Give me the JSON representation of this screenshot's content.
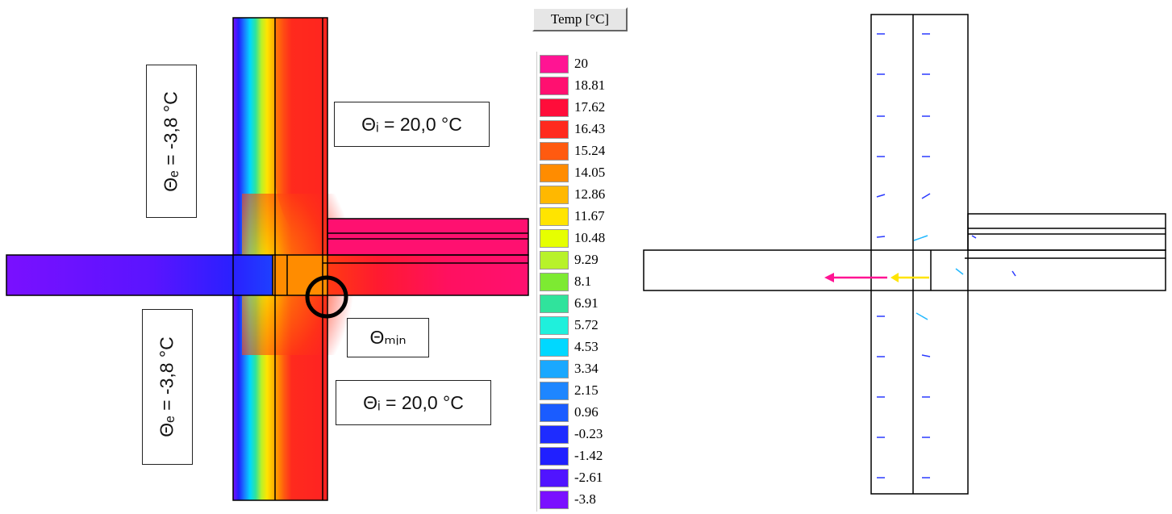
{
  "labels": {
    "theta_e_top": "Θₑ = -3,8 °C",
    "theta_e_bottom": "Θₑ = -3,8 °C",
    "theta_i_top": "Θᵢ = 20,0 °C",
    "theta_i_bottom": "Θᵢ = 20,0 °C",
    "theta_min": "Θₘᵢₙ"
  },
  "legend": {
    "title": "Temp [°C]",
    "entries": [
      {
        "value": "20",
        "color": "#ff1493"
      },
      {
        "value": "18.81",
        "color": "#ff1070"
      },
      {
        "value": "17.62",
        "color": "#ff0d3a"
      },
      {
        "value": "16.43",
        "color": "#ff2a1e"
      },
      {
        "value": "15.24",
        "color": "#ff5a10"
      },
      {
        "value": "14.05",
        "color": "#ff8c00"
      },
      {
        "value": "12.86",
        "color": "#ffb800"
      },
      {
        "value": "11.67",
        "color": "#ffe400"
      },
      {
        "value": "10.48",
        "color": "#e6ff00"
      },
      {
        "value": "9.29",
        "color": "#b8f22a"
      },
      {
        "value": "8.1",
        "color": "#7dea32"
      },
      {
        "value": "6.91",
        "color": "#30e39c"
      },
      {
        "value": "5.72",
        "color": "#1ff0dc"
      },
      {
        "value": "4.53",
        "color": "#00d8ff"
      },
      {
        "value": "3.34",
        "color": "#1aa8ff"
      },
      {
        "value": "2.15",
        "color": "#1e86ff"
      },
      {
        "value": "0.96",
        "color": "#1a5cff"
      },
      {
        "value": "-0.23",
        "color": "#1e2cff"
      },
      {
        "value": "-1.42",
        "color": "#2020ff"
      },
      {
        "value": "-2.61",
        "color": "#5014ff"
      },
      {
        "value": "-3.8",
        "color": "#7a10ff"
      }
    ]
  },
  "colors": {
    "cold": "#7a10ff",
    "warm": "#ff1070",
    "outline": "#000000",
    "min_marker": "#000000"
  }
}
